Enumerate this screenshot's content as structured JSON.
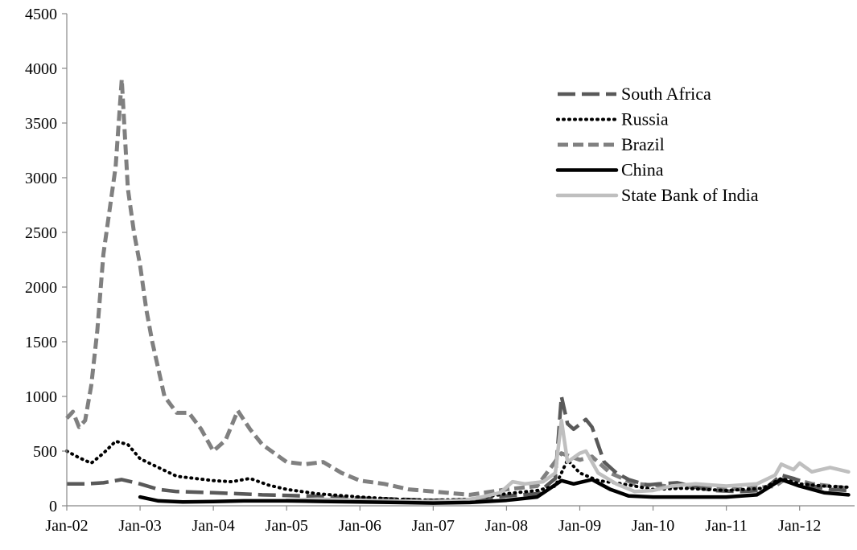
{
  "chart_data": {
    "type": "line",
    "title": "",
    "xlabel": "",
    "ylabel": "",
    "ylim": [
      0,
      4500
    ],
    "y_ticks": [
      0,
      500,
      1000,
      1500,
      2000,
      2500,
      3000,
      3500,
      4000,
      4500
    ],
    "y_tick_labels": [
      "0",
      "500",
      "1000",
      "1500",
      "2000",
      "2500",
      "3000",
      "3500",
      "4000",
      "4500"
    ],
    "x_range": [
      "2002-01",
      "2012-09"
    ],
    "x_tick_labels": [
      "Jan-02",
      "Jan-03",
      "Jan-04",
      "Jan-05",
      "Jan-06",
      "Jan-07",
      "Jan-08",
      "Jan-09",
      "Jan-10",
      "Jan-11",
      "Jan-12"
    ],
    "x_tick_dates": [
      "2002-01",
      "2003-01",
      "2004-01",
      "2005-01",
      "2006-01",
      "2007-01",
      "2008-01",
      "2009-01",
      "2010-01",
      "2011-01",
      "2012-01"
    ],
    "grid": false,
    "legend_position": "top-right",
    "series": [
      {
        "name": "South Africa",
        "color": "#595959",
        "style": "long-dash",
        "points": [
          [
            "2002-01",
            200
          ],
          [
            "2002-04",
            200
          ],
          [
            "2002-07",
            210
          ],
          [
            "2002-10",
            240
          ],
          [
            "2003-01",
            200
          ],
          [
            "2003-04",
            150
          ],
          [
            "2003-07",
            130
          ],
          [
            "2004-01",
            120
          ],
          [
            "2004-05",
            110
          ],
          [
            "2004-09",
            100
          ],
          [
            "2005-01",
            95
          ],
          [
            "2005-07",
            85
          ],
          [
            "2006-01",
            70
          ],
          [
            "2006-07",
            60
          ],
          [
            "2007-01",
            50
          ],
          [
            "2007-07",
            55
          ],
          [
            "2008-01",
            90
          ],
          [
            "2008-06",
            110
          ],
          [
            "2008-09",
            250
          ],
          [
            "2008-10",
            1000
          ],
          [
            "2008-11",
            750
          ],
          [
            "2008-12",
            700
          ],
          [
            "2009-02",
            790
          ],
          [
            "2009-03",
            720
          ],
          [
            "2009-05",
            400
          ],
          [
            "2009-07",
            300
          ],
          [
            "2009-09",
            240
          ],
          [
            "2009-12",
            190
          ],
          [
            "2010-02",
            200
          ],
          [
            "2010-05",
            210
          ],
          [
            "2010-08",
            170
          ],
          [
            "2010-11",
            140
          ],
          [
            "2011-03",
            130
          ],
          [
            "2011-07",
            140
          ],
          [
            "2011-10",
            280
          ],
          [
            "2011-12",
            250
          ],
          [
            "2012-03",
            180
          ],
          [
            "2012-06",
            150
          ],
          [
            "2012-09",
            140
          ]
        ]
      },
      {
        "name": "Russia",
        "color": "#000000",
        "style": "dotted",
        "points": [
          [
            "2002-01",
            500
          ],
          [
            "2002-03",
            440
          ],
          [
            "2002-05",
            390
          ],
          [
            "2002-07",
            480
          ],
          [
            "2002-09",
            590
          ],
          [
            "2002-11",
            560
          ],
          [
            "2003-01",
            430
          ],
          [
            "2003-04",
            350
          ],
          [
            "2003-07",
            270
          ],
          [
            "2004-01",
            230
          ],
          [
            "2004-04",
            220
          ],
          [
            "2004-07",
            250
          ],
          [
            "2004-10",
            190
          ],
          [
            "2005-01",
            150
          ],
          [
            "2005-06",
            110
          ],
          [
            "2006-01",
            80
          ],
          [
            "2006-07",
            60
          ],
          [
            "2007-01",
            50
          ],
          [
            "2007-07",
            60
          ],
          [
            "2008-01",
            110
          ],
          [
            "2008-06",
            140
          ],
          [
            "2008-09",
            180
          ],
          [
            "2008-11",
            420
          ],
          [
            "2009-01",
            300
          ],
          [
            "2009-04",
            230
          ],
          [
            "2009-08",
            200
          ],
          [
            "2010-01",
            150
          ],
          [
            "2010-06",
            160
          ],
          [
            "2011-01",
            140
          ],
          [
            "2011-07",
            160
          ],
          [
            "2011-10",
            250
          ],
          [
            "2012-01",
            200
          ],
          [
            "2012-05",
            180
          ],
          [
            "2012-09",
            170
          ]
        ]
      },
      {
        "name": "Brazil",
        "color": "#808080",
        "style": "medium-dash",
        "points": [
          [
            "2002-01",
            800
          ],
          [
            "2002-02",
            860
          ],
          [
            "2002-03",
            720
          ],
          [
            "2002-04",
            780
          ],
          [
            "2002-05",
            1100
          ],
          [
            "2002-06",
            1600
          ],
          [
            "2002-07",
            2300
          ],
          [
            "2002-08",
            2700
          ],
          [
            "2002-09",
            3100
          ],
          [
            "2002-10",
            3900
          ],
          [
            "2002-11",
            2900
          ],
          [
            "2002-12",
            2500
          ],
          [
            "2003-01",
            2200
          ],
          [
            "2003-02",
            1800
          ],
          [
            "2003-03",
            1500
          ],
          [
            "2003-05",
            1000
          ],
          [
            "2003-07",
            850
          ],
          [
            "2003-09",
            850
          ],
          [
            "2003-11",
            700
          ],
          [
            "2004-01",
            500
          ],
          [
            "2004-03",
            600
          ],
          [
            "2004-05",
            870
          ],
          [
            "2004-07",
            700
          ],
          [
            "2004-09",
            560
          ],
          [
            "2005-01",
            400
          ],
          [
            "2005-04",
            380
          ],
          [
            "2005-07",
            400
          ],
          [
            "2005-10",
            300
          ],
          [
            "2006-01",
            230
          ],
          [
            "2006-05",
            200
          ],
          [
            "2006-09",
            150
          ],
          [
            "2007-01",
            130
          ],
          [
            "2007-07",
            100
          ],
          [
            "2008-01",
            150
          ],
          [
            "2008-06",
            180
          ],
          [
            "2008-10",
            480
          ],
          [
            "2009-01",
            420
          ],
          [
            "2009-03",
            450
          ],
          [
            "2009-06",
            300
          ],
          [
            "2009-10",
            200
          ],
          [
            "2010-03",
            180
          ],
          [
            "2010-09",
            170
          ],
          [
            "2011-03",
            150
          ],
          [
            "2011-09",
            180
          ],
          [
            "2011-11",
            260
          ],
          [
            "2012-03",
            200
          ],
          [
            "2012-09",
            160
          ]
        ]
      },
      {
        "name": "China",
        "color": "#000000",
        "style": "solid",
        "points": [
          [
            "2003-01",
            80
          ],
          [
            "2003-04",
            45
          ],
          [
            "2003-08",
            35
          ],
          [
            "2004-01",
            38
          ],
          [
            "2004-06",
            45
          ],
          [
            "2005-01",
            45
          ],
          [
            "2005-07",
            40
          ],
          [
            "2006-01",
            35
          ],
          [
            "2006-07",
            30
          ],
          [
            "2007-01",
            25
          ],
          [
            "2007-07",
            30
          ],
          [
            "2008-01",
            50
          ],
          [
            "2008-06",
            80
          ],
          [
            "2008-10",
            230
          ],
          [
            "2008-12",
            200
          ],
          [
            "2009-03",
            240
          ],
          [
            "2009-06",
            150
          ],
          [
            "2009-09",
            90
          ],
          [
            "2010-01",
            80
          ],
          [
            "2010-06",
            80
          ],
          [
            "2011-01",
            80
          ],
          [
            "2011-06",
            100
          ],
          [
            "2011-10",
            240
          ],
          [
            "2012-01",
            180
          ],
          [
            "2012-05",
            120
          ],
          [
            "2012-09",
            100
          ]
        ]
      },
      {
        "name": "State Bank of India",
        "color": "#bfbfbf",
        "style": "solid",
        "points": [
          [
            "2005-01",
            50
          ],
          [
            "2005-06",
            60
          ],
          [
            "2006-01",
            50
          ],
          [
            "2006-06",
            45
          ],
          [
            "2007-01",
            40
          ],
          [
            "2007-06",
            50
          ],
          [
            "2007-09",
            80
          ],
          [
            "2007-12",
            120
          ],
          [
            "2008-02",
            220
          ],
          [
            "2008-04",
            200
          ],
          [
            "2008-07",
            220
          ],
          [
            "2008-09",
            300
          ],
          [
            "2008-10",
            780
          ],
          [
            "2008-11",
            400
          ],
          [
            "2009-01",
            480
          ],
          [
            "2009-02",
            500
          ],
          [
            "2009-04",
            300
          ],
          [
            "2009-07",
            200
          ],
          [
            "2009-10",
            130
          ],
          [
            "2010-01",
            140
          ],
          [
            "2010-04",
            180
          ],
          [
            "2010-08",
            200
          ],
          [
            "2011-01",
            180
          ],
          [
            "2011-06",
            200
          ],
          [
            "2011-09",
            280
          ],
          [
            "2011-10",
            380
          ],
          [
            "2011-12",
            330
          ],
          [
            "2012-01",
            390
          ],
          [
            "2012-03",
            310
          ],
          [
            "2012-06",
            350
          ],
          [
            "2012-09",
            310
          ]
        ]
      }
    ]
  }
}
